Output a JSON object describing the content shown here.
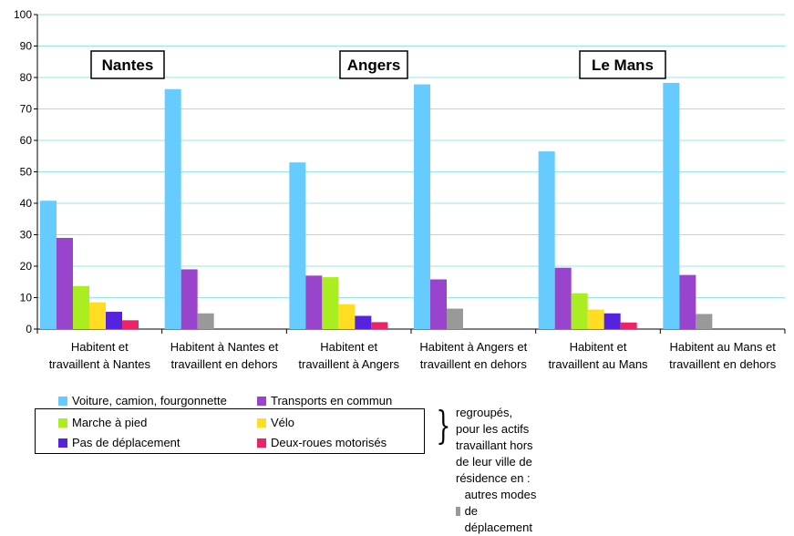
{
  "chart_data": {
    "type": "bar",
    "ylim": [
      0,
      100
    ],
    "yticks": [
      0,
      10,
      20,
      30,
      40,
      50,
      60,
      70,
      80,
      90,
      100
    ],
    "grid": true,
    "city_labels": [
      "Nantes",
      "Angers",
      "Le Mans"
    ],
    "categories": [
      [
        "Habitent et",
        "travaillent à Nantes"
      ],
      [
        "Habitent à Nantes et",
        "travaillent en dehors"
      ],
      [
        "Habitent et",
        "travaillent à Angers"
      ],
      [
        "Habitent à Angers et",
        "travaillent en dehors"
      ],
      [
        "Habitent et",
        "travaillent au Mans"
      ],
      [
        "Habitent au Mans et",
        "travaillent en dehors"
      ]
    ],
    "series": [
      {
        "name": "Voiture, camion, fourgonnette",
        "color": "#66ccff",
        "values": [
          40.8,
          76.3,
          53.0,
          77.8,
          56.5,
          78.3
        ]
      },
      {
        "name": "Transports en commun",
        "color": "#9944cc",
        "values": [
          29.0,
          19.0,
          17.0,
          15.8,
          19.5,
          17.2
        ]
      },
      {
        "name": "Marche à pied",
        "color": "#aaee22",
        "values": [
          13.7,
          null,
          16.5,
          null,
          11.4,
          null
        ]
      },
      {
        "name": "Vélo",
        "color": "#ffdd22",
        "values": [
          8.5,
          null,
          7.9,
          null,
          6.2,
          null
        ]
      },
      {
        "name": "Pas de déplacement",
        "color": "#5522dd",
        "values": [
          5.5,
          null,
          4.2,
          null,
          5.0,
          null
        ]
      },
      {
        "name": "Deux-roues motorisés",
        "color": "#ee2266",
        "values": [
          2.8,
          null,
          2.2,
          null,
          2.1,
          null
        ]
      },
      {
        "name": "autres modes de déplacement",
        "color": "#999999",
        "values": [
          null,
          5.0,
          null,
          6.5,
          null,
          4.8
        ]
      }
    ]
  },
  "legend": {
    "voiture": "Voiture, camion, fourgonnette",
    "transports": "Transports en commun",
    "marche": "Marche à pied",
    "velo": "Vélo",
    "pas_deplacement": "Pas de déplacement",
    "deux_roues": "Deux-roues motorisés",
    "note_line1": "regroupés, pour les actifs travaillant hors",
    "note_line2": "de leur ville de résidence en :",
    "autres": "autres modes de déplacement"
  }
}
